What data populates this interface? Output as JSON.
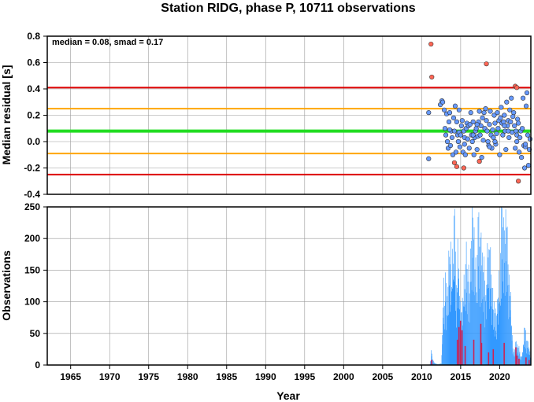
{
  "chart_data": [
    {
      "type": "scatter",
      "title": "Station RIDG, phase P, 10711 observations",
      "xlabel": "",
      "ylabel": "Median residual [s]",
      "xlim": [
        1962,
        2024
      ],
      "ylim": [
        -0.4,
        0.8
      ],
      "yticks": [
        "0.8",
        "0.6",
        "0.4",
        "0.2",
        "0.0",
        "-0.2",
        "-0.4"
      ],
      "annotation": "median = 0.08, smad = 0.17",
      "grid": true,
      "reference_lines": [
        {
          "name": "median",
          "value": 0.08,
          "color": "#22dd22"
        },
        {
          "name": "+1 smad",
          "value": 0.25,
          "color": "#ffa500"
        },
        {
          "name": "-1 smad",
          "value": -0.09,
          "color": "#ffa500"
        },
        {
          "name": "+2 smad",
          "value": 0.41,
          "color": "#dd0000"
        },
        {
          "name": "-2 smad",
          "value": -0.25,
          "color": "#dd0000"
        }
      ],
      "series": [
        {
          "color": "#6699ff",
          "points": [
            [
              2010.9,
              0.22
            ],
            [
              2010.9,
              -0.13
            ],
            [
              2012.4,
              0.28
            ],
            [
              2012.6,
              0.31
            ],
            [
              2012.7,
              0.3
            ],
            [
              2012.9,
              0.24
            ],
            [
              2013.0,
              0.1
            ],
            [
              2013.1,
              0.05
            ],
            [
              2013.2,
              0.21
            ],
            [
              2013.3,
              0.0
            ],
            [
              2013.4,
              -0.05
            ],
            [
              2013.5,
              0.15
            ],
            [
              2013.6,
              0.22
            ],
            [
              2013.7,
              -0.03
            ],
            [
              2013.8,
              0.08
            ],
            [
              2013.9,
              0.03
            ],
            [
              2014.0,
              -0.1
            ],
            [
              2014.1,
              0.18
            ],
            [
              2014.2,
              0.08
            ],
            [
              2014.3,
              0.27
            ],
            [
              2014.4,
              -0.08
            ],
            [
              2014.5,
              0.15
            ],
            [
              2014.6,
              0.05
            ],
            [
              2014.7,
              0.0
            ],
            [
              2014.8,
              0.07
            ],
            [
              2014.9,
              -0.04
            ],
            [
              2015.0,
              0.05
            ],
            [
              2015.1,
              0.12
            ],
            [
              2015.2,
              0.16
            ],
            [
              2015.3,
              -0.08
            ],
            [
              2015.4,
              0.08
            ],
            [
              2015.5,
              0.03
            ],
            [
              2015.6,
              -0.1
            ],
            [
              2015.7,
              0.1
            ],
            [
              2015.8,
              0.14
            ],
            [
              2015.9,
              0.02
            ],
            [
              2016.0,
              0.12
            ],
            [
              2016.1,
              -0.05
            ],
            [
              2016.2,
              0.13
            ],
            [
              2016.3,
              0.22
            ],
            [
              2016.4,
              0.05
            ],
            [
              2016.5,
              0.0
            ],
            [
              2016.6,
              0.15
            ],
            [
              2016.7,
              -0.1
            ],
            [
              2016.8,
              0.03
            ],
            [
              2016.9,
              0.08
            ],
            [
              2017.0,
              0.1
            ],
            [
              2017.1,
              -0.06
            ],
            [
              2017.2,
              0.04
            ],
            [
              2017.3,
              0.15
            ],
            [
              2017.4,
              0.23
            ],
            [
              2017.5,
              0.05
            ],
            [
              2017.6,
              0.12
            ],
            [
              2017.7,
              -0.12
            ],
            [
              2017.8,
              0.18
            ],
            [
              2017.9,
              0.01
            ],
            [
              2018.0,
              0.22
            ],
            [
              2018.1,
              0.1
            ],
            [
              2018.2,
              0.25
            ],
            [
              2018.3,
              0.16
            ],
            [
              2018.4,
              0.08
            ],
            [
              2018.5,
              0.0
            ],
            [
              2018.6,
              -0.03
            ],
            [
              2018.7,
              0.13
            ],
            [
              2018.8,
              0.23
            ],
            [
              2018.9,
              0.05
            ],
            [
              2019.0,
              -0.05
            ],
            [
              2019.1,
              0.09
            ],
            [
              2019.2,
              0.03
            ],
            [
              2019.3,
              0.2
            ],
            [
              2019.4,
              0.14
            ],
            [
              2019.5,
              -0.02
            ],
            [
              2019.6,
              0.06
            ],
            [
              2019.7,
              0.22
            ],
            [
              2019.8,
              0.1
            ],
            [
              2019.9,
              0.16
            ],
            [
              2020.0,
              -0.1
            ],
            [
              2020.1,
              0.18
            ],
            [
              2020.2,
              0.26
            ],
            [
              2020.3,
              0.14
            ],
            [
              2020.4,
              0.05
            ],
            [
              2020.5,
              0.15
            ],
            [
              2020.6,
              0.2
            ],
            [
              2020.7,
              0.08
            ],
            [
              2020.8,
              -0.06
            ],
            [
              2020.9,
              0.3
            ],
            [
              2021.0,
              0.12
            ],
            [
              2021.1,
              0.16
            ],
            [
              2021.2,
              0.03
            ],
            [
              2021.3,
              0.24
            ],
            [
              2021.4,
              0.15
            ],
            [
              2021.5,
              0.33
            ],
            [
              2021.6,
              0.07
            ],
            [
              2021.7,
              0.19
            ],
            [
              2021.8,
              0.22
            ],
            [
              2021.9,
              0.12
            ],
            [
              2022.0,
              -0.05
            ],
            [
              2022.1,
              0.08
            ],
            [
              2022.2,
              0.05
            ],
            [
              2022.3,
              0.17
            ],
            [
              2022.4,
              0.14
            ],
            [
              2022.5,
              -0.08
            ],
            [
              2022.6,
              0.03
            ],
            [
              2022.7,
              0.08
            ],
            [
              2022.8,
              -0.12
            ],
            [
              2022.9,
              0.1
            ],
            [
              2023.0,
              0.33
            ],
            [
              2023.1,
              -0.03
            ],
            [
              2023.2,
              -0.2
            ],
            [
              2023.3,
              -0.04
            ],
            [
              2023.4,
              0.27
            ],
            [
              2023.5,
              0.37
            ],
            [
              2023.6,
              0.05
            ],
            [
              2023.7,
              -0.18
            ],
            [
              2023.8,
              -0.06
            ],
            [
              2023.9,
              0.02
            ],
            [
              2013.6,
              0.09
            ],
            [
              2014.8,
              0.24
            ],
            [
              2016.6,
              0.05
            ],
            [
              2019.4,
              0.0
            ],
            [
              2020.6,
              0.12
            ],
            [
              2022.2,
              0.0
            ],
            [
              2017.1,
              0.13
            ],
            [
              2018.7,
              -0.04
            ],
            [
              2015.5,
              -0.02
            ],
            [
              2021.1,
              0.08
            ],
            [
              2023.3,
              -0.02
            ]
          ]
        },
        {
          "color": "#ff6655",
          "points": [
            [
              2011.2,
              0.74
            ],
            [
              2011.3,
              0.49
            ],
            [
              2014.2,
              -0.16
            ],
            [
              2014.5,
              -0.19
            ],
            [
              2015.4,
              -0.2
            ],
            [
              2017.4,
              -0.15
            ],
            [
              2018.3,
              0.59
            ],
            [
              2022.0,
              0.42
            ],
            [
              2022.2,
              0.41
            ],
            [
              2022.4,
              -0.3
            ]
          ]
        }
      ]
    },
    {
      "type": "bar",
      "xlabel": "Year",
      "ylabel": "Observations",
      "xlim": [
        1962,
        2024
      ],
      "ylim": [
        0,
        250
      ],
      "xticks": [
        "1965",
        "1970",
        "1975",
        "1980",
        "1985",
        "1990",
        "1995",
        "2000",
        "2005",
        "2010",
        "2015",
        "2020"
      ],
      "xtick_values": [
        1965,
        1970,
        1975,
        1980,
        1985,
        1990,
        1995,
        2000,
        2005,
        2010,
        2015,
        2020
      ],
      "yticks": [
        "250",
        "200",
        "150",
        "100",
        "50",
        "0"
      ],
      "grid": true,
      "series": [
        {
          "color": "#3399ff",
          "start_year": 2011.0,
          "bin_width_years": 0.05,
          "anchors": [
            [
              2011.0,
              0
            ],
            [
              2011.1,
              5
            ],
            [
              2011.2,
              18
            ],
            [
              2011.4,
              8
            ],
            [
              2011.6,
              3
            ],
            [
              2012.0,
              1
            ],
            [
              2012.5,
              2
            ],
            [
              2012.6,
              40
            ],
            [
              2012.8,
              100
            ],
            [
              2012.9,
              85
            ],
            [
              2013.0,
              120
            ],
            [
              2013.2,
              75
            ],
            [
              2013.5,
              140
            ],
            [
              2013.7,
              150
            ],
            [
              2013.8,
              110
            ],
            [
              2014.0,
              160
            ],
            [
              2014.15,
              220
            ],
            [
              2014.3,
              130
            ],
            [
              2014.5,
              100
            ],
            [
              2014.6,
              150
            ],
            [
              2014.8,
              110
            ],
            [
              2014.9,
              80
            ],
            [
              2015.0,
              65
            ],
            [
              2015.3,
              90
            ],
            [
              2015.5,
              120
            ],
            [
              2015.7,
              150
            ],
            [
              2015.8,
              110
            ],
            [
              2016.0,
              130
            ],
            [
              2016.1,
              85
            ],
            [
              2016.3,
              165
            ],
            [
              2016.6,
              200
            ],
            [
              2016.8,
              135
            ],
            [
              2017.0,
              115
            ],
            [
              2017.2,
              180
            ],
            [
              2017.5,
              165
            ],
            [
              2017.7,
              150
            ],
            [
              2017.8,
              130
            ],
            [
              2018.0,
              120
            ],
            [
              2018.2,
              85
            ],
            [
              2018.5,
              170
            ],
            [
              2018.7,
              140
            ],
            [
              2018.9,
              130
            ],
            [
              2019.0,
              100
            ],
            [
              2019.3,
              75
            ],
            [
              2019.5,
              60
            ],
            [
              2019.7,
              80
            ],
            [
              2019.9,
              110
            ],
            [
              2020.0,
              100
            ],
            [
              2020.2,
              200
            ],
            [
              2020.3,
              180
            ],
            [
              2020.45,
              207
            ],
            [
              2020.6,
              160
            ],
            [
              2020.8,
              205
            ],
            [
              2021.0,
              140
            ],
            [
              2021.2,
              110
            ],
            [
              2021.4,
              85
            ],
            [
              2021.6,
              40
            ],
            [
              2021.7,
              20
            ],
            [
              2021.8,
              15
            ],
            [
              2022.0,
              30
            ],
            [
              2022.3,
              25
            ],
            [
              2022.5,
              20
            ],
            [
              2022.7,
              10
            ],
            [
              2022.9,
              15
            ],
            [
              2023.1,
              50
            ],
            [
              2023.4,
              35
            ],
            [
              2023.6,
              28
            ],
            [
              2023.8,
              20
            ],
            [
              2024.0,
              15
            ]
          ],
          "jitter": [
            0,
            -0.25,
            0.18,
            -0.4,
            0.3,
            -0.12,
            0.38,
            -0.3,
            0.1,
            -0.45,
            0.22,
            -0.08,
            0.33,
            -0.36,
            0.05,
            0.27,
            -0.2,
            0.15,
            -0.33,
            0.4,
            -0.1,
            0.2,
            -0.42,
            0.08,
            0.3,
            -0.27,
            0.12,
            -0.05,
            0.36,
            -0.18
          ]
        },
        {
          "color": "#cc2255",
          "bars": [
            [
              2011.2,
              8
            ],
            [
              2014.5,
              40
            ],
            [
              2014.7,
              60
            ],
            [
              2014.9,
              70
            ],
            [
              2015.1,
              55
            ],
            [
              2015.5,
              30
            ],
            [
              2016.6,
              40
            ],
            [
              2017.5,
              65
            ],
            [
              2017.6,
              35
            ],
            [
              2018.5,
              20
            ],
            [
              2019.1,
              25
            ],
            [
              2020.5,
              35
            ],
            [
              2022.0,
              28
            ],
            [
              2022.15,
              15
            ],
            [
              2022.4,
              10
            ],
            [
              2023.3,
              12
            ],
            [
              2023.7,
              8
            ]
          ]
        }
      ]
    }
  ]
}
